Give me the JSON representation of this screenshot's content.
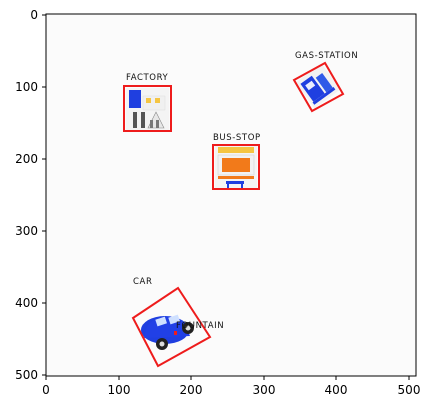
{
  "axes": {
    "x_ticks": [
      "0",
      "100",
      "200",
      "300",
      "400",
      "500"
    ],
    "y_ticks": [
      "0",
      "100",
      "200",
      "300",
      "400",
      "500"
    ]
  },
  "annotations": {
    "factory_label": "FACTORY",
    "bus_stop_label": "BUS-STOP",
    "gas_station_label": "GAS-STATION",
    "car_label": "CAR",
    "fountain_label": "FOUNTAIN"
  },
  "colors": {
    "box": "#ee1c1c",
    "icon_blue": "#1f3fe0",
    "icon_orange": "#f27a1a",
    "icon_yellow": "#f5c542"
  }
}
